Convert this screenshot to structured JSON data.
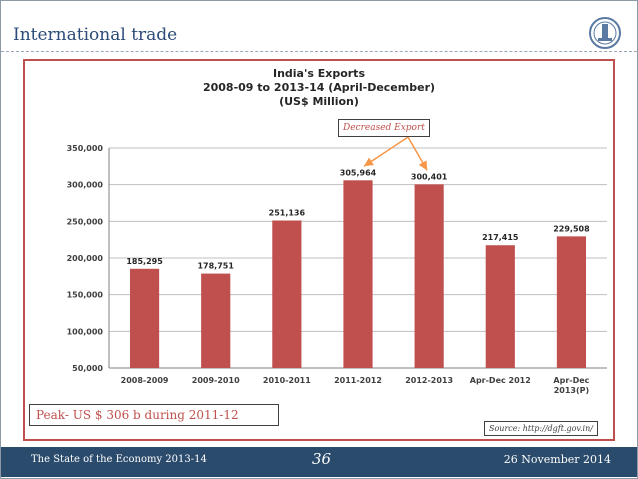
{
  "header": {
    "title": "International trade"
  },
  "chart_data": {
    "type": "bar",
    "title_lines": [
      "India's Exports",
      "2008-09 to 2013-14 (April-December)",
      "(US$ Million)"
    ],
    "categories": [
      "2008-2009",
      "2009-2010",
      "2010-2011",
      "2011-2012",
      "2012-2013",
      "Apr-Dec 2012",
      "Apr-Dec 2013(P)"
    ],
    "category_lines": [
      [
        "2008-2009"
      ],
      [
        "2009-2010"
      ],
      [
        "2010-2011"
      ],
      [
        "2011-2012"
      ],
      [
        "2012-2013"
      ],
      [
        "Apr-Dec 2012"
      ],
      [
        "Apr-Dec",
        "2013(P)"
      ]
    ],
    "values": [
      185295,
      178751,
      251136,
      305964,
      300401,
      217415,
      229508
    ],
    "value_labels": [
      "185,295",
      "178,751",
      "251,136",
      "305,964",
      "300,401",
      "217,415",
      "229,508"
    ],
    "ylim": [
      50000,
      350000
    ],
    "yticks": [
      50000,
      100000,
      150000,
      200000,
      250000,
      300000,
      350000
    ],
    "ytick_labels": [
      "50,000",
      "100,000",
      "150,000",
      "200,000",
      "250,000",
      "300,000",
      "350,000"
    ],
    "grid": true,
    "bar_color": "#c0504d",
    "annotation": {
      "text": "Decreased Export",
      "targets": [
        "2011-2012",
        "2012-2013"
      ],
      "arrow_color": "#f79646"
    }
  },
  "peak_note": "Peak- US $ 306 b during 2011-12",
  "source_note": "Source: http://dgft.gov.in/",
  "footer": {
    "left": "The State of the Economy 2013-14",
    "page": "36",
    "date": "26 November 2014"
  }
}
